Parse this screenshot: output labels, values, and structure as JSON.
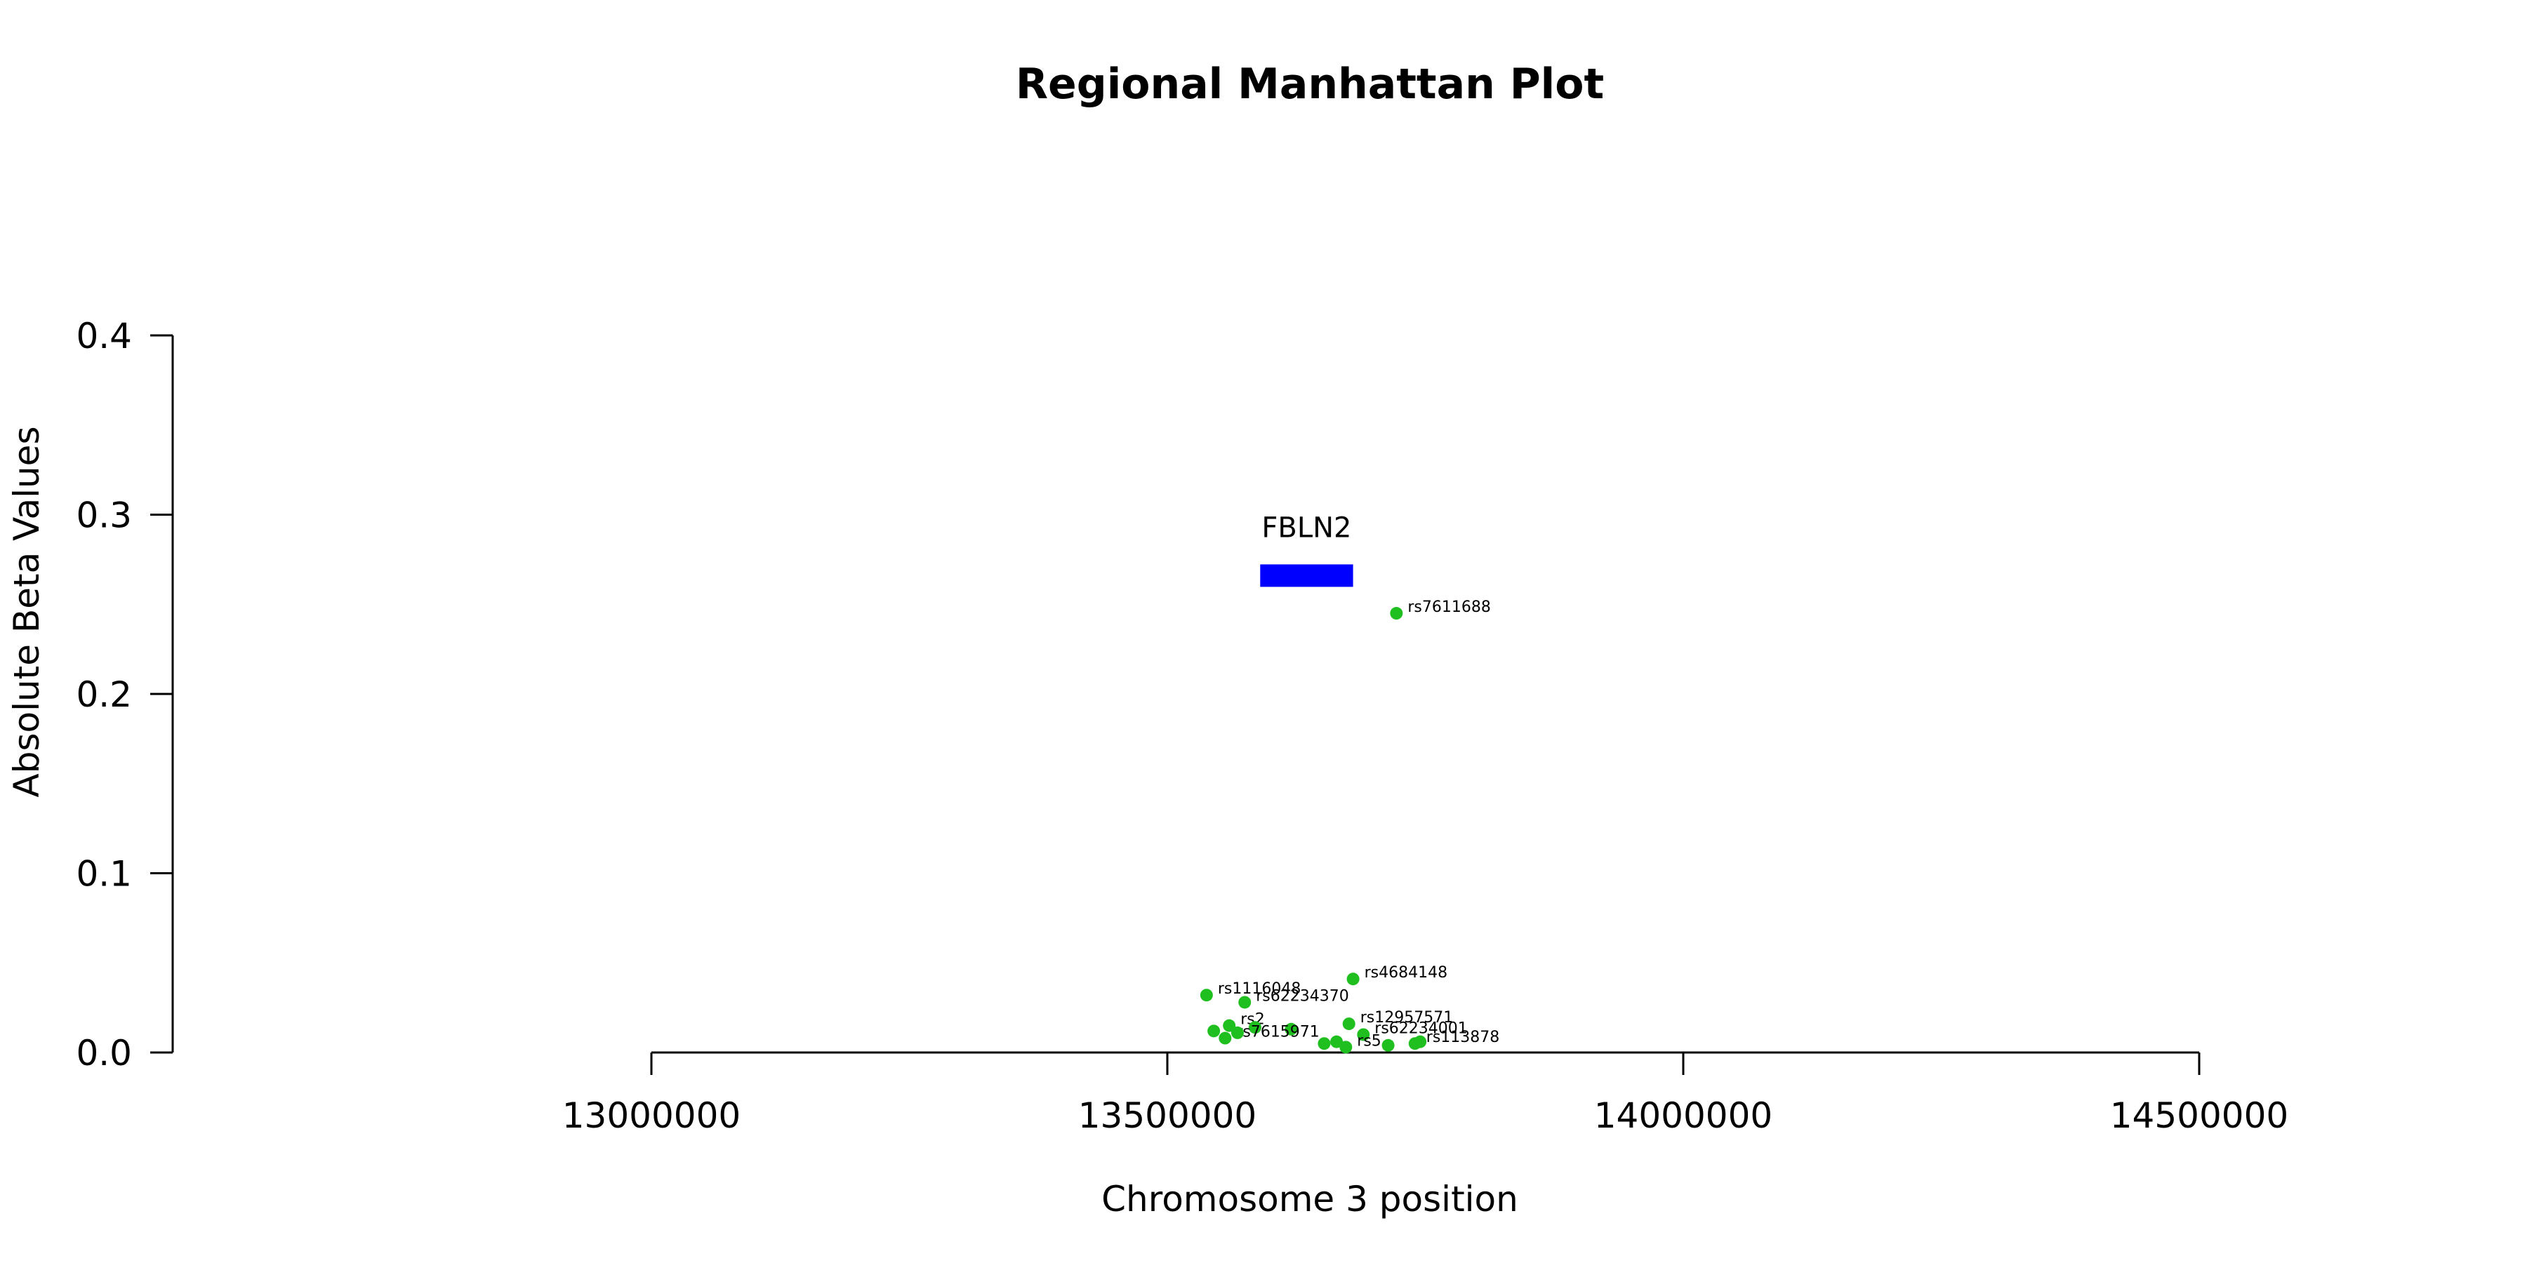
{
  "chart_data": {
    "type": "scatter",
    "title": "Regional Manhattan Plot",
    "xlabel": "Chromosome 3 position",
    "ylabel": "Absolute Beta Values",
    "xlim": [
      13000000,
      14500000
    ],
    "ylim": [
      0,
      0.4
    ],
    "x_ticks": [
      "13000000",
      "13500000",
      "14000000",
      "14500000"
    ],
    "y_ticks": [
      "0.0",
      "0.1",
      "0.2",
      "0.3",
      "0.4"
    ],
    "grid": false,
    "point_color": "#1fbf1f",
    "gene_color": "#0000ff",
    "genes": [
      {
        "name": "FBLN2",
        "start": 13590000,
        "end": 13680000,
        "y": 0.266
      }
    ],
    "points": [
      {
        "x": 13722000,
        "y": 0.245,
        "label": "rs7611688"
      },
      {
        "x": 13680000,
        "y": 0.041,
        "label": "rs4684148"
      },
      {
        "x": 13538000,
        "y": 0.032,
        "label": "rs1116048"
      },
      {
        "x": 13575000,
        "y": 0.028,
        "label": "rs62234370"
      },
      {
        "x": 13560000,
        "y": 0.015,
        "label": "rs2"
      },
      {
        "x": 13585000,
        "y": 0.014,
        "label": ""
      },
      {
        "x": 13620000,
        "y": 0.013,
        "label": ""
      },
      {
        "x": 13676000,
        "y": 0.016,
        "label": "rs12957571"
      },
      {
        "x": 13690000,
        "y": 0.01,
        "label": "rs62234001"
      },
      {
        "x": 13545000,
        "y": 0.012,
        "label": ""
      },
      {
        "x": 13556000,
        "y": 0.008,
        "label": "rs7615971"
      },
      {
        "x": 13568000,
        "y": 0.011,
        "label": ""
      },
      {
        "x": 13652000,
        "y": 0.005,
        "label": ""
      },
      {
        "x": 13664000,
        "y": 0.006,
        "label": ""
      },
      {
        "x": 13673000,
        "y": 0.003,
        "label": "rs5"
      },
      {
        "x": 13714000,
        "y": 0.004,
        "label": ""
      },
      {
        "x": 13740000,
        "y": 0.005,
        "label": "rs113878"
      },
      {
        "x": 13745000,
        "y": 0.006,
        "label": ""
      }
    ]
  }
}
